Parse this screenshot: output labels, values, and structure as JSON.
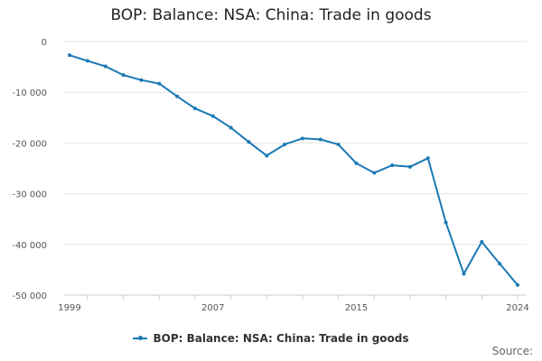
{
  "chart_data": {
    "type": "line",
    "title": "BOP: Balance: NSA: China: Trade in goods",
    "xlabel": "",
    "ylabel": "",
    "xlim": [
      1999,
      2024
    ],
    "ylim": [
      -50000,
      0
    ],
    "x_ticks": [
      1999,
      2007,
      2015,
      2024
    ],
    "y_ticks": [
      0,
      -10000,
      -20000,
      -30000,
      -40000,
      -50000
    ],
    "y_tick_labels": [
      "0",
      "-10 000",
      "-20 000",
      "-30 000",
      "-40 000",
      "-50 000"
    ],
    "grid": true,
    "legend_position": "bottom",
    "series": [
      {
        "name": "BOP: Balance: NSA: China: Trade in goods",
        "x": [
          1999,
          2000,
          2001,
          2002,
          2003,
          2004,
          2005,
          2006,
          2007,
          2008,
          2009,
          2010,
          2011,
          2012,
          2013,
          2014,
          2015,
          2016,
          2017,
          2018,
          2019,
          2020,
          2021,
          2022,
          2023,
          2024
        ],
        "values": [
          -2700,
          -3800,
          -4900,
          -6600,
          -7600,
          -8300,
          -10800,
          -13200,
          -14700,
          -17000,
          -19800,
          -22500,
          -20300,
          -19100,
          -19300,
          -20300,
          -24000,
          -25900,
          -24400,
          -24700,
          -23000,
          -35700,
          -45800,
          -39500,
          -43800,
          -48000
        ]
      }
    ],
    "colors": {
      "line": "#1a7ab5",
      "grid": "#e6e6e6",
      "axis": "#cccccc"
    }
  },
  "credit": "Source:"
}
